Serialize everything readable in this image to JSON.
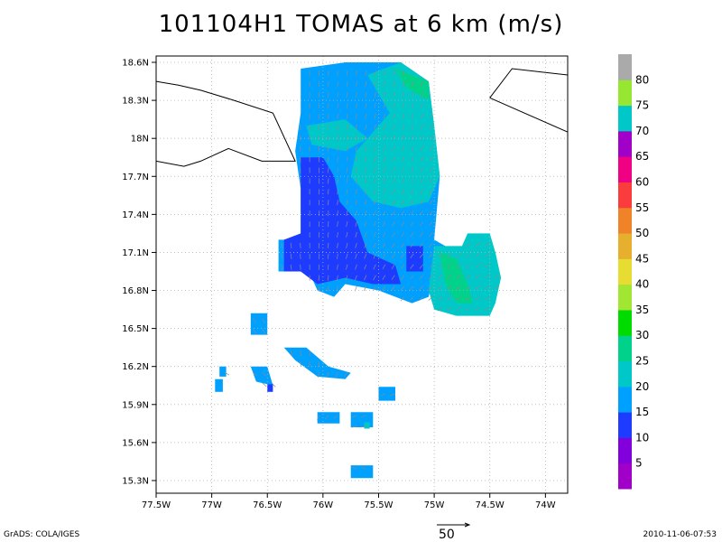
{
  "title": "101104H1 TOMAS at 6 km (m/s)",
  "footer": {
    "left": "GrADS: COLA/IGES",
    "right": "2010-11-06-07:53"
  },
  "reference_vector": {
    "label": "50"
  },
  "colors": {
    "grid": "#b0b0b0",
    "coast": "#000000",
    "vector": "#8c8c8c"
  },
  "chart_data": {
    "type": "heatmap",
    "title": "101104H1 TOMAS at 6 km (m/s)",
    "xlim": [
      -77.5,
      -73.8
    ],
    "ylim": [
      15.2,
      18.65
    ],
    "x_ticks": [
      {
        "value": -77.5,
        "label": "77.5W"
      },
      {
        "value": -77.0,
        "label": "77W"
      },
      {
        "value": -76.5,
        "label": "76.5W"
      },
      {
        "value": -76.0,
        "label": "76W"
      },
      {
        "value": -75.5,
        "label": "75.5W"
      },
      {
        "value": -75.0,
        "label": "75W"
      },
      {
        "value": -74.5,
        "label": "74.5W"
      },
      {
        "value": -74.0,
        "label": "74W"
      }
    ],
    "y_ticks": [
      {
        "value": 15.3,
        "label": "15.3N"
      },
      {
        "value": 15.6,
        "label": "15.6N"
      },
      {
        "value": 15.9,
        "label": "15.9N"
      },
      {
        "value": 16.2,
        "label": "16.2N"
      },
      {
        "value": 16.5,
        "label": "16.5N"
      },
      {
        "value": 16.8,
        "label": "16.8N"
      },
      {
        "value": 17.1,
        "label": "17.1N"
      },
      {
        "value": 17.4,
        "label": "17.4N"
      },
      {
        "value": 17.7,
        "label": "17.7N"
      },
      {
        "value": 18.0,
        "label": "18N"
      },
      {
        "value": 18.3,
        "label": "18.3N"
      },
      {
        "value": 18.6,
        "label": "18.6N"
      }
    ],
    "grid": true,
    "colorbar": {
      "labels": [
        "5",
        "10",
        "15",
        "20",
        "25",
        "30",
        "35",
        "40",
        "45",
        "50",
        "55",
        "60",
        "65",
        "70",
        "75",
        "80"
      ],
      "colors": [
        "#a000c8",
        "#8200dc",
        "#1e3cff",
        "#00a0ff",
        "#00c8c8",
        "#00d28c",
        "#00dc00",
        "#a0e632",
        "#e6dc32",
        "#e6af2d",
        "#f08228",
        "#fa3c3c",
        "#f00082",
        "#a000c8",
        "#00c8c8",
        "#96e632",
        "#aaaaaa"
      ]
    },
    "coastlines": [
      [
        [
          -77.5,
          18.45
        ],
        [
          -77.3,
          18.42
        ],
        [
          -77.1,
          18.38
        ],
        [
          -76.8,
          18.3
        ],
        [
          -76.45,
          18.2
        ],
        [
          -76.25,
          17.82
        ],
        [
          -76.55,
          17.82
        ],
        [
          -76.85,
          17.92
        ],
        [
          -77.1,
          17.82
        ],
        [
          -77.25,
          17.78
        ],
        [
          -77.5,
          17.82
        ]
      ],
      [
        [
          -74.5,
          18.32
        ],
        [
          -74.3,
          18.55
        ],
        [
          -74.0,
          18.52
        ],
        [
          -73.8,
          18.5
        ]
      ],
      [
        [
          -74.5,
          18.32
        ],
        [
          -73.8,
          18.05
        ]
      ]
    ],
    "wind_regions": [
      {
        "speed_class": "15",
        "polygon": [
          [
            -76.2,
            18.55
          ],
          [
            -75.8,
            18.6
          ],
          [
            -75.3,
            18.6
          ],
          [
            -75.05,
            18.45
          ],
          [
            -75.0,
            18.1
          ],
          [
            -74.95,
            17.7
          ],
          [
            -75.0,
            17.2
          ],
          [
            -74.9,
            17.15
          ],
          [
            -75.0,
            16.95
          ],
          [
            -75.05,
            16.75
          ],
          [
            -75.2,
            16.7
          ],
          [
            -75.5,
            16.8
          ],
          [
            -75.8,
            16.85
          ],
          [
            -75.9,
            16.75
          ],
          [
            -76.05,
            16.8
          ],
          [
            -76.1,
            16.9
          ],
          [
            -76.2,
            16.95
          ],
          [
            -76.4,
            16.95
          ],
          [
            -76.4,
            17.2
          ],
          [
            -76.2,
            17.2
          ],
          [
            -76.2,
            17.6
          ],
          [
            -76.25,
            17.9
          ],
          [
            -76.2,
            18.2
          ]
        ]
      },
      {
        "speed_class": "20",
        "polygon": [
          [
            -75.6,
            18.5
          ],
          [
            -75.3,
            18.6
          ],
          [
            -75.05,
            18.45
          ],
          [
            -75.0,
            18.1
          ],
          [
            -74.95,
            17.7
          ],
          [
            -75.05,
            17.5
          ],
          [
            -75.3,
            17.45
          ],
          [
            -75.55,
            17.5
          ],
          [
            -75.75,
            17.7
          ],
          [
            -75.7,
            17.9
          ],
          [
            -75.55,
            18.05
          ],
          [
            -75.4,
            18.2
          ],
          [
            -75.5,
            18.35
          ]
        ]
      },
      {
        "speed_class": "20",
        "polygon": [
          [
            -76.15,
            18.1
          ],
          [
            -75.8,
            18.15
          ],
          [
            -75.6,
            18.0
          ],
          [
            -75.8,
            17.9
          ],
          [
            -76.1,
            17.95
          ]
        ]
      },
      {
        "speed_class": "25",
        "polygon": [
          [
            -75.35,
            18.55
          ],
          [
            -75.05,
            18.45
          ],
          [
            -75.05,
            18.3
          ],
          [
            -75.25,
            18.4
          ]
        ]
      },
      {
        "speed_class": "10",
        "polygon": [
          [
            -76.2,
            17.85
          ],
          [
            -76.0,
            17.85
          ],
          [
            -75.9,
            17.7
          ],
          [
            -75.85,
            17.5
          ],
          [
            -75.7,
            17.35
          ],
          [
            -75.6,
            17.1
          ],
          [
            -75.35,
            17.0
          ],
          [
            -75.3,
            16.85
          ],
          [
            -75.55,
            16.85
          ],
          [
            -75.8,
            16.9
          ],
          [
            -76.05,
            16.85
          ],
          [
            -76.2,
            16.95
          ],
          [
            -76.35,
            16.95
          ],
          [
            -76.35,
            17.2
          ],
          [
            -76.2,
            17.25
          ],
          [
            -76.2,
            17.6
          ]
        ]
      },
      {
        "speed_class": "10",
        "polygon": [
          [
            -75.25,
            17.15
          ],
          [
            -75.1,
            17.15
          ],
          [
            -75.1,
            16.95
          ],
          [
            -75.25,
            16.95
          ]
        ]
      },
      {
        "speed_class": "20",
        "polygon": [
          [
            -75.0,
            17.15
          ],
          [
            -74.75,
            17.15
          ],
          [
            -74.7,
            17.25
          ],
          [
            -74.5,
            17.25
          ],
          [
            -74.45,
            17.1
          ],
          [
            -74.4,
            16.9
          ],
          [
            -74.45,
            16.7
          ],
          [
            -74.5,
            16.6
          ],
          [
            -74.8,
            16.6
          ],
          [
            -75.0,
            16.65
          ],
          [
            -75.05,
            16.8
          ]
        ]
      },
      {
        "speed_class": "25",
        "polygon": [
          [
            -74.95,
            17.1
          ],
          [
            -74.8,
            17.05
          ],
          [
            -74.7,
            16.85
          ],
          [
            -74.65,
            16.7
          ],
          [
            -74.8,
            16.7
          ],
          [
            -74.9,
            16.85
          ]
        ]
      },
      {
        "speed_class": "15",
        "polygon": [
          [
            -76.65,
            16.62
          ],
          [
            -76.5,
            16.62
          ],
          [
            -76.5,
            16.45
          ],
          [
            -76.65,
            16.45
          ]
        ]
      },
      {
        "speed_class": "15",
        "polygon": [
          [
            -76.35,
            16.35
          ],
          [
            -76.15,
            16.35
          ],
          [
            -75.95,
            16.2
          ],
          [
            -75.75,
            16.15
          ],
          [
            -75.8,
            16.1
          ],
          [
            -76.05,
            16.12
          ],
          [
            -76.25,
            16.25
          ]
        ]
      },
      {
        "speed_class": "15",
        "polygon": [
          [
            -76.65,
            16.2
          ],
          [
            -76.5,
            16.2
          ],
          [
            -76.45,
            16.05
          ],
          [
            -76.6,
            16.08
          ]
        ]
      },
      {
        "speed_class": "10",
        "polygon": [
          [
            -76.5,
            16.06
          ],
          [
            -76.45,
            16.06
          ],
          [
            -76.45,
            16.0
          ],
          [
            -76.5,
            16.0
          ]
        ]
      },
      {
        "speed_class": "15",
        "polygon": [
          [
            -76.93,
            16.2
          ],
          [
            -76.87,
            16.2
          ],
          [
            -76.87,
            16.12
          ],
          [
            -76.93,
            16.12
          ]
        ]
      },
      {
        "speed_class": "15",
        "polygon": [
          [
            -76.97,
            16.1
          ],
          [
            -76.9,
            16.1
          ],
          [
            -76.9,
            16.0
          ],
          [
            -76.97,
            16.0
          ]
        ]
      },
      {
        "speed_class": "15",
        "polygon": [
          [
            -75.5,
            16.04
          ],
          [
            -75.35,
            16.04
          ],
          [
            -75.35,
            15.93
          ],
          [
            -75.5,
            15.93
          ]
        ]
      },
      {
        "speed_class": "15",
        "polygon": [
          [
            -76.05,
            15.84
          ],
          [
            -75.85,
            15.84
          ],
          [
            -75.85,
            15.75
          ],
          [
            -76.05,
            15.75
          ]
        ]
      },
      {
        "speed_class": "15",
        "polygon": [
          [
            -75.75,
            15.84
          ],
          [
            -75.55,
            15.84
          ],
          [
            -75.55,
            15.72
          ],
          [
            -75.75,
            15.72
          ]
        ]
      },
      {
        "speed_class": "20",
        "polygon": [
          [
            -75.63,
            15.76
          ],
          [
            -75.58,
            15.76
          ],
          [
            -75.58,
            15.71
          ],
          [
            -75.63,
            15.71
          ]
        ]
      },
      {
        "speed_class": "15",
        "polygon": [
          [
            -75.75,
            15.42
          ],
          [
            -75.55,
            15.42
          ],
          [
            -75.55,
            15.32
          ],
          [
            -75.75,
            15.32
          ]
        ]
      }
    ]
  }
}
